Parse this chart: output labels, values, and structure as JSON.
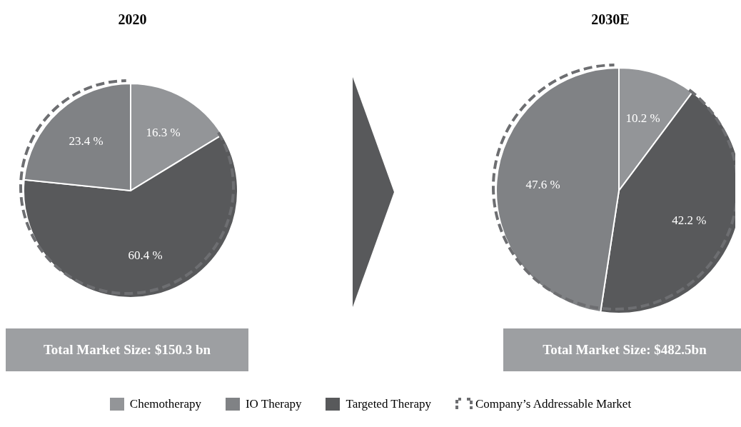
{
  "chart_data": [
    {
      "type": "pie",
      "title": "2020",
      "categories": [
        "Chemotherapy",
        "Targeted Therapy",
        "IO Therapy"
      ],
      "values": [
        16.3,
        60.4,
        23.4
      ],
      "colors": [
        "#939598",
        "#58595b",
        "#808285"
      ],
      "value_labels": [
        "16.3 %",
        "60.4 %",
        "23.4 %"
      ],
      "annotations": [
        "Total Market Size: $150.3 bn"
      ],
      "legend": "bottom"
    },
    {
      "type": "pie",
      "title": "2030E",
      "categories": [
        null,
        null,
        null
      ],
      "values": [
        10.2,
        42.2,
        47.6
      ],
      "colors": [
        "#939598",
        "#58595b",
        "#808285"
      ],
      "value_labels": [
        "10.2 %",
        "42.2 %",
        "47.6 %"
      ],
      "annotations": [
        "Total Market Size: $482.5bn",
        "Company’s Addressable Market"
      ]
    }
  ]
}
